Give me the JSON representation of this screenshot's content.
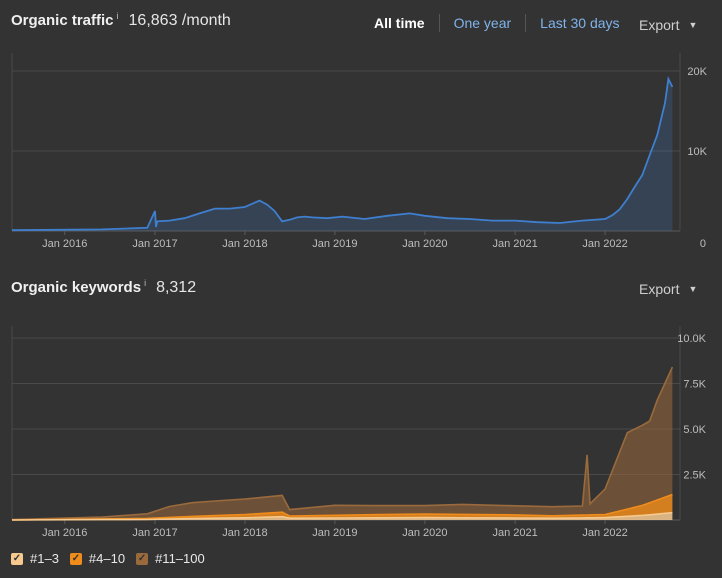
{
  "traffic": {
    "title": "Organic traffic",
    "info_icon": "info-icon",
    "value": "16,863 /month",
    "range_options": [
      "All time",
      "One year",
      "Last 30 days"
    ],
    "active_range": "All time",
    "export_label": "Export"
  },
  "keywords": {
    "title": "Organic keywords",
    "info_icon": "info-icon",
    "value": "8,312",
    "export_label": "Export"
  },
  "colors": {
    "background": "#333333",
    "traffic_line": "#3f7fcf",
    "kw_1_3": "#f6c98f",
    "kw_4_10": "#f08c1c",
    "kw_11_100": "#9a6a3c",
    "link": "#7fb3ea"
  },
  "legend": [
    {
      "label": "#1–3",
      "color": "#f6c98f",
      "checked": true
    },
    {
      "label": "#4–10",
      "color": "#f08c1c",
      "checked": true
    },
    {
      "label": "#11–100",
      "color": "#9a6a3c",
      "checked": true
    }
  ],
  "chart_data": [
    {
      "type": "area",
      "name": "Organic traffic",
      "x_ticks": [
        "Jan 2016",
        "Jan 2017",
        "Jan 2018",
        "Jan 2019",
        "Jan 2020",
        "Jan 2021",
        "Jan 2022"
      ],
      "y_ticks": [
        "20K",
        "10K",
        "0"
      ],
      "y_tick_values": [
        20000,
        10000,
        0
      ],
      "ylim": [
        0,
        20000
      ],
      "xlim": [
        "2015-06-01",
        "2022-11-01"
      ],
      "grid": true,
      "series": [
        {
          "x": [
            "2015-06-01",
            "2016-06-01",
            "2016-12-01",
            "2017-01-01",
            "2017-01-05",
            "2017-01-10",
            "2017-03-01",
            "2017-05-01",
            "2017-07-01",
            "2017-09-01",
            "2017-11-01",
            "2018-01-01",
            "2018-03-01",
            "2018-04-01",
            "2018-05-01",
            "2018-06-01",
            "2018-07-01",
            "2018-08-01",
            "2018-09-01",
            "2018-10-01",
            "2018-12-01",
            "2019-02-01",
            "2019-05-01",
            "2019-08-01",
            "2019-11-01",
            "2020-01-01",
            "2020-04-01",
            "2020-07-01",
            "2020-10-01",
            "2021-01-01",
            "2021-04-01",
            "2021-07-01",
            "2021-10-01",
            "2022-01-01",
            "2022-02-01",
            "2022-03-01",
            "2022-04-01",
            "2022-05-01",
            "2022-06-01",
            "2022-07-01",
            "2022-08-01",
            "2022-09-01",
            "2022-09-15",
            "2022-10-01"
          ],
          "y": [
            100,
            200,
            400,
            2500,
            500,
            1200,
            1300,
            1600,
            2200,
            2800,
            2800,
            3000,
            3800,
            3300,
            2500,
            1200,
            1400,
            1700,
            1800,
            1700,
            1600,
            1800,
            1500,
            1900,
            2200,
            1900,
            1600,
            1500,
            1300,
            1300,
            1100,
            1000,
            1300,
            1500,
            2000,
            2700,
            4000,
            5500,
            7000,
            9500,
            12000,
            16000,
            19000,
            18000
          ]
        }
      ]
    },
    {
      "type": "area",
      "name": "Organic keywords",
      "x_ticks": [
        "Jan 2016",
        "Jan 2017",
        "Jan 2018",
        "Jan 2019",
        "Jan 2020",
        "Jan 2021",
        "Jan 2022"
      ],
      "y_ticks": [
        "10.0K",
        "7.5K",
        "5.0K",
        "2.5K"
      ],
      "y_tick_values": [
        10000,
        7500,
        5000,
        2500,
        0
      ],
      "ylim": [
        0,
        10000
      ],
      "xlim": [
        "2015-06-01",
        "2022-11-01"
      ],
      "grid": true,
      "stacked": true,
      "series": [
        {
          "name": "#1–3",
          "x": [
            "2015-06-01",
            "2016-12-01",
            "2017-06-01",
            "2018-01-01",
            "2018-06-01",
            "2018-07-01",
            "2019-01-01",
            "2020-01-01",
            "2021-01-01",
            "2021-06-01",
            "2022-01-01",
            "2022-06-01",
            "2022-10-01"
          ],
          "y": [
            0,
            30,
            80,
            120,
            180,
            100,
            110,
            130,
            110,
            100,
            130,
            250,
            400
          ]
        },
        {
          "name": "#4–10",
          "x": [
            "2015-06-01",
            "2016-12-01",
            "2017-06-01",
            "2018-01-01",
            "2018-06-01",
            "2018-07-01",
            "2019-01-01",
            "2020-01-01",
            "2021-01-01",
            "2021-06-01",
            "2022-01-01",
            "2022-06-01",
            "2022-10-01"
          ],
          "y": [
            0,
            60,
            120,
            180,
            250,
            120,
            150,
            200,
            170,
            130,
            170,
            550,
            1000
          ]
        },
        {
          "name": "#11–100",
          "x": [
            "2015-06-01",
            "2016-06-01",
            "2016-12-01",
            "2017-03-01",
            "2017-06-01",
            "2017-09-01",
            "2018-01-01",
            "2018-06-01",
            "2018-07-01",
            "2019-01-01",
            "2019-06-01",
            "2020-01-01",
            "2020-06-01",
            "2021-01-01",
            "2021-06-01",
            "2021-10-01",
            "2021-10-20",
            "2021-11-01",
            "2021-11-15",
            "2022-01-01",
            "2022-04-01",
            "2022-07-01",
            "2022-08-01",
            "2022-10-01"
          ],
          "y": [
            20,
            100,
            250,
            600,
            750,
            800,
            850,
            920,
            350,
            550,
            500,
            460,
            550,
            500,
            500,
            500,
            3300,
            600,
            800,
            1400,
            4200,
            4500,
            5500,
            7000
          ]
        }
      ]
    }
  ]
}
